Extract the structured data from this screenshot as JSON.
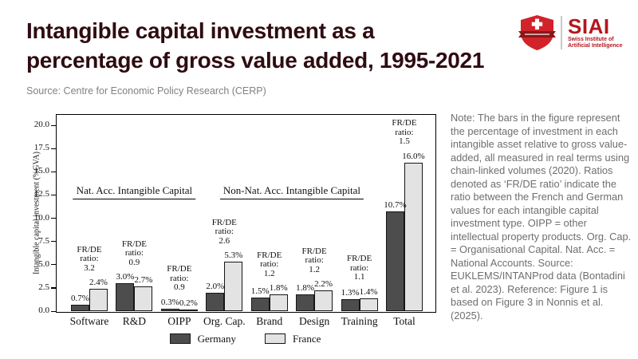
{
  "header": {
    "title": "Intangible capital investment as a percentage of gross value added, 1995-2021",
    "title_lines": [
      "Intangible capital investment as a",
      "percentage of gross value added, 1995-2021"
    ],
    "source": "Source: Centre for Economic Policy Research (CERP)",
    "title_color": "#2f0c12"
  },
  "logo": {
    "acronym": "SIAI",
    "name_line1": "Swiss Institute of",
    "name_line2": "Artificial Intelligence",
    "red": "#b5161d",
    "shield_red": "#d2232a",
    "ribbon_red": "#8c1518"
  },
  "chart_data": {
    "type": "bar",
    "title": "",
    "xlabel": "",
    "ylabel": "Intangible capital investment (%GVA)",
    "ylim": [
      0,
      21.2
    ],
    "yticks": [
      0.0,
      2.5,
      5.0,
      7.5,
      10.0,
      12.5,
      15.0,
      17.5,
      20.0
    ],
    "grid": false,
    "legend_position": "bottom",
    "categories": [
      "Software",
      "R&D",
      "OIPP",
      "Org. Cap.",
      "Brand",
      "Design",
      "Training",
      "Total"
    ],
    "series": [
      {
        "name": "Germany",
        "color": "#4d4d4d",
        "values": [
          0.7,
          3.0,
          0.3,
          2.0,
          1.5,
          1.8,
          1.3,
          10.7
        ],
        "labels": [
          "0.7%",
          "3.0%",
          "0.3%",
          "2.0%",
          "1.5%",
          "1.8%",
          "1.3%",
          "10.7%"
        ]
      },
      {
        "name": "France",
        "color": "#e3e3e3",
        "values": [
          2.4,
          2.7,
          0.2,
          5.3,
          1.8,
          2.2,
          1.4,
          16.0
        ],
        "labels": [
          "2.4%",
          "2.7%",
          "0.2%",
          "5.3%",
          "1.8%",
          "2.2%",
          "1.4%",
          "16.0%"
        ]
      }
    ],
    "ratio_label_lines": [
      "FR/DE",
      "ratio:"
    ],
    "ratios": [
      "3.2",
      "0.9",
      "0.9",
      "2.6",
      "1.2",
      "1.2",
      "1.1",
      "1.5"
    ],
    "group_headers": [
      {
        "label": "Nat. Acc. Intangible Capital",
        "from": 0,
        "to": 2
      },
      {
        "label": "Non-Nat. Acc. Intangible Capital",
        "from": 3,
        "to": 6
      }
    ],
    "legend": [
      "Germany",
      "France"
    ]
  },
  "note": {
    "text": "Note: The bars in the figure represent the percentage of investment in each intangible asset relative to gross value-added, all measured in real terms using chain-linked volumes (2020). Ratios denoted as ‘FR/DE ratio’ indicate the ratio between the French and German values for each intangible capital investment type. OIPP = other intellectual property products. Org. Cap. = Organisational Capital. Nat. Acc. = National Accounts. Source: EUKLEMS/INTANProd data (Bontadini et al. 2023). Reference: Figure 1 is based on Figure 3 in Nonnis et al. (2025)."
  }
}
